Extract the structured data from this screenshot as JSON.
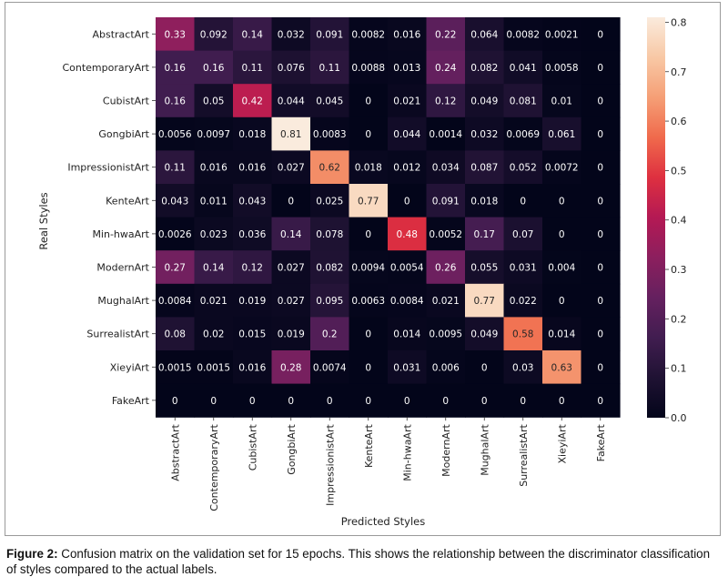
{
  "chart_data": {
    "type": "heatmap",
    "ylabel": "Real Styles",
    "xlabel": "Predicted Styles",
    "row_labels": [
      "AbstractArt",
      "ContemporaryArt",
      "CubistArt",
      "GongbiArt",
      "ImpressionistArt",
      "KenteArt",
      "Min-hwaArt",
      "ModernArt",
      "MughalArt",
      "SurrealistArt",
      "XieyiArt",
      "FakeArt"
    ],
    "col_labels": [
      "AbstractArt",
      "ContemporaryArt",
      "CubistArt",
      "GongbiArt",
      "ImpressionistArt",
      "KenteArt",
      "Min-hwaArt",
      "ModernArt",
      "MughalArt",
      "SurrealistArt",
      "XieyiArt",
      "FakeArt"
    ],
    "values": [
      [
        0.33,
        0.092,
        0.14,
        0.032,
        0.091,
        0.0082,
        0.016,
        0.22,
        0.064,
        0.0082,
        0.0021,
        0
      ],
      [
        0.16,
        0.16,
        0.11,
        0.076,
        0.11,
        0.0088,
        0.013,
        0.24,
        0.082,
        0.041,
        0.0058,
        0
      ],
      [
        0.16,
        0.05,
        0.42,
        0.044,
        0.045,
        0,
        0.021,
        0.12,
        0.049,
        0.081,
        0.01,
        0
      ],
      [
        0.0056,
        0.0097,
        0.018,
        0.81,
        0.0083,
        0,
        0.044,
        0.0014,
        0.032,
        0.0069,
        0.061,
        0
      ],
      [
        0.11,
        0.016,
        0.016,
        0.027,
        0.62,
        0.018,
        0.012,
        0.034,
        0.087,
        0.052,
        0.0072,
        0
      ],
      [
        0.043,
        0.011,
        0.043,
        0,
        0.025,
        0.77,
        0,
        0.091,
        0.018,
        0,
        0,
        0
      ],
      [
        0.0026,
        0.023,
        0.036,
        0.14,
        0.078,
        0,
        0.48,
        0.0052,
        0.17,
        0.07,
        0,
        0
      ],
      [
        0.27,
        0.14,
        0.12,
        0.027,
        0.082,
        0.0094,
        0.0054,
        0.26,
        0.055,
        0.031,
        0.004,
        0
      ],
      [
        0.0084,
        0.021,
        0.019,
        0.027,
        0.095,
        0.0063,
        0.0084,
        0.021,
        0.77,
        0.022,
        0,
        0
      ],
      [
        0.08,
        0.02,
        0.015,
        0.019,
        0.2,
        0,
        0.014,
        0.0095,
        0.049,
        0.58,
        0.014,
        0
      ],
      [
        0.0015,
        0.0015,
        0.016,
        0.28,
        0.0074,
        0,
        0.031,
        0.006,
        0,
        0.03,
        0.63,
        0
      ],
      [
        0,
        0,
        0,
        0,
        0,
        0,
        0,
        0,
        0,
        0,
        0,
        0
      ]
    ],
    "labels": [
      [
        "0.33",
        "0.092",
        "0.14",
        "0.032",
        "0.091",
        "0.0082",
        "0.016",
        "0.22",
        "0.064",
        "0.0082",
        "0.0021",
        "0"
      ],
      [
        "0.16",
        "0.16",
        "0.11",
        "0.076",
        "0.11",
        "0.0088",
        "0.013",
        "0.24",
        "0.082",
        "0.041",
        "0.0058",
        "0"
      ],
      [
        "0.16",
        "0.05",
        "0.42",
        "0.044",
        "0.045",
        "0",
        "0.021",
        "0.12",
        "0.049",
        "0.081",
        "0.01",
        "0"
      ],
      [
        "0.0056",
        "0.0097",
        "0.018",
        "0.81",
        "0.0083",
        "0",
        "0.044",
        "0.0014",
        "0.032",
        "0.0069",
        "0.061",
        "0"
      ],
      [
        "0.11",
        "0.016",
        "0.016",
        "0.027",
        "0.62",
        "0.018",
        "0.012",
        "0.034",
        "0.087",
        "0.052",
        "0.0072",
        "0"
      ],
      [
        "0.043",
        "0.011",
        "0.043",
        "0",
        "0.025",
        "0.77",
        "0",
        "0.091",
        "0.018",
        "0",
        "0",
        "0"
      ],
      [
        "0.0026",
        "0.023",
        "0.036",
        "0.14",
        "0.078",
        "0",
        "0.48",
        "0.0052",
        "0.17",
        "0.07",
        "0",
        "0"
      ],
      [
        "0.27",
        "0.14",
        "0.12",
        "0.027",
        "0.082",
        "0.0094",
        "0.0054",
        "0.26",
        "0.055",
        "0.031",
        "0.004",
        "0"
      ],
      [
        "0.0084",
        "0.021",
        "0.019",
        "0.027",
        "0.095",
        "0.0063",
        "0.0084",
        "0.021",
        "0.77",
        "0.022",
        "0",
        "0"
      ],
      [
        "0.08",
        "0.02",
        "0.015",
        "0.019",
        "0.2",
        "0",
        "0.014",
        "0.0095",
        "0.049",
        "0.58",
        "0.014",
        "0"
      ],
      [
        "0.0015",
        "0.0015",
        "0.016",
        "0.28",
        "0.0074",
        "0",
        "0.031",
        "0.006",
        "0",
        "0.03",
        "0.63",
        "0"
      ],
      [
        "0",
        "0",
        "0",
        "0",
        "0",
        "0",
        "0",
        "0",
        "0",
        "0",
        "0",
        "0"
      ]
    ],
    "colormap": "rocket",
    "vmin": 0,
    "vmax": 0.81,
    "colorbar_ticks": [
      "0.0",
      "0.1",
      "0.2",
      "0.3",
      "0.4",
      "0.5",
      "0.6",
      "0.7",
      "0.8"
    ],
    "colorbar_tick_values": [
      0,
      0.1,
      0.2,
      0.3,
      0.4,
      0.5,
      0.6,
      0.7,
      0.8
    ]
  },
  "caption": {
    "label": "Figure 2:",
    "text": " Confusion matrix on the validation set for 15 epochs. This shows the relationship between the discriminator classification of styles compared to the actual labels."
  }
}
